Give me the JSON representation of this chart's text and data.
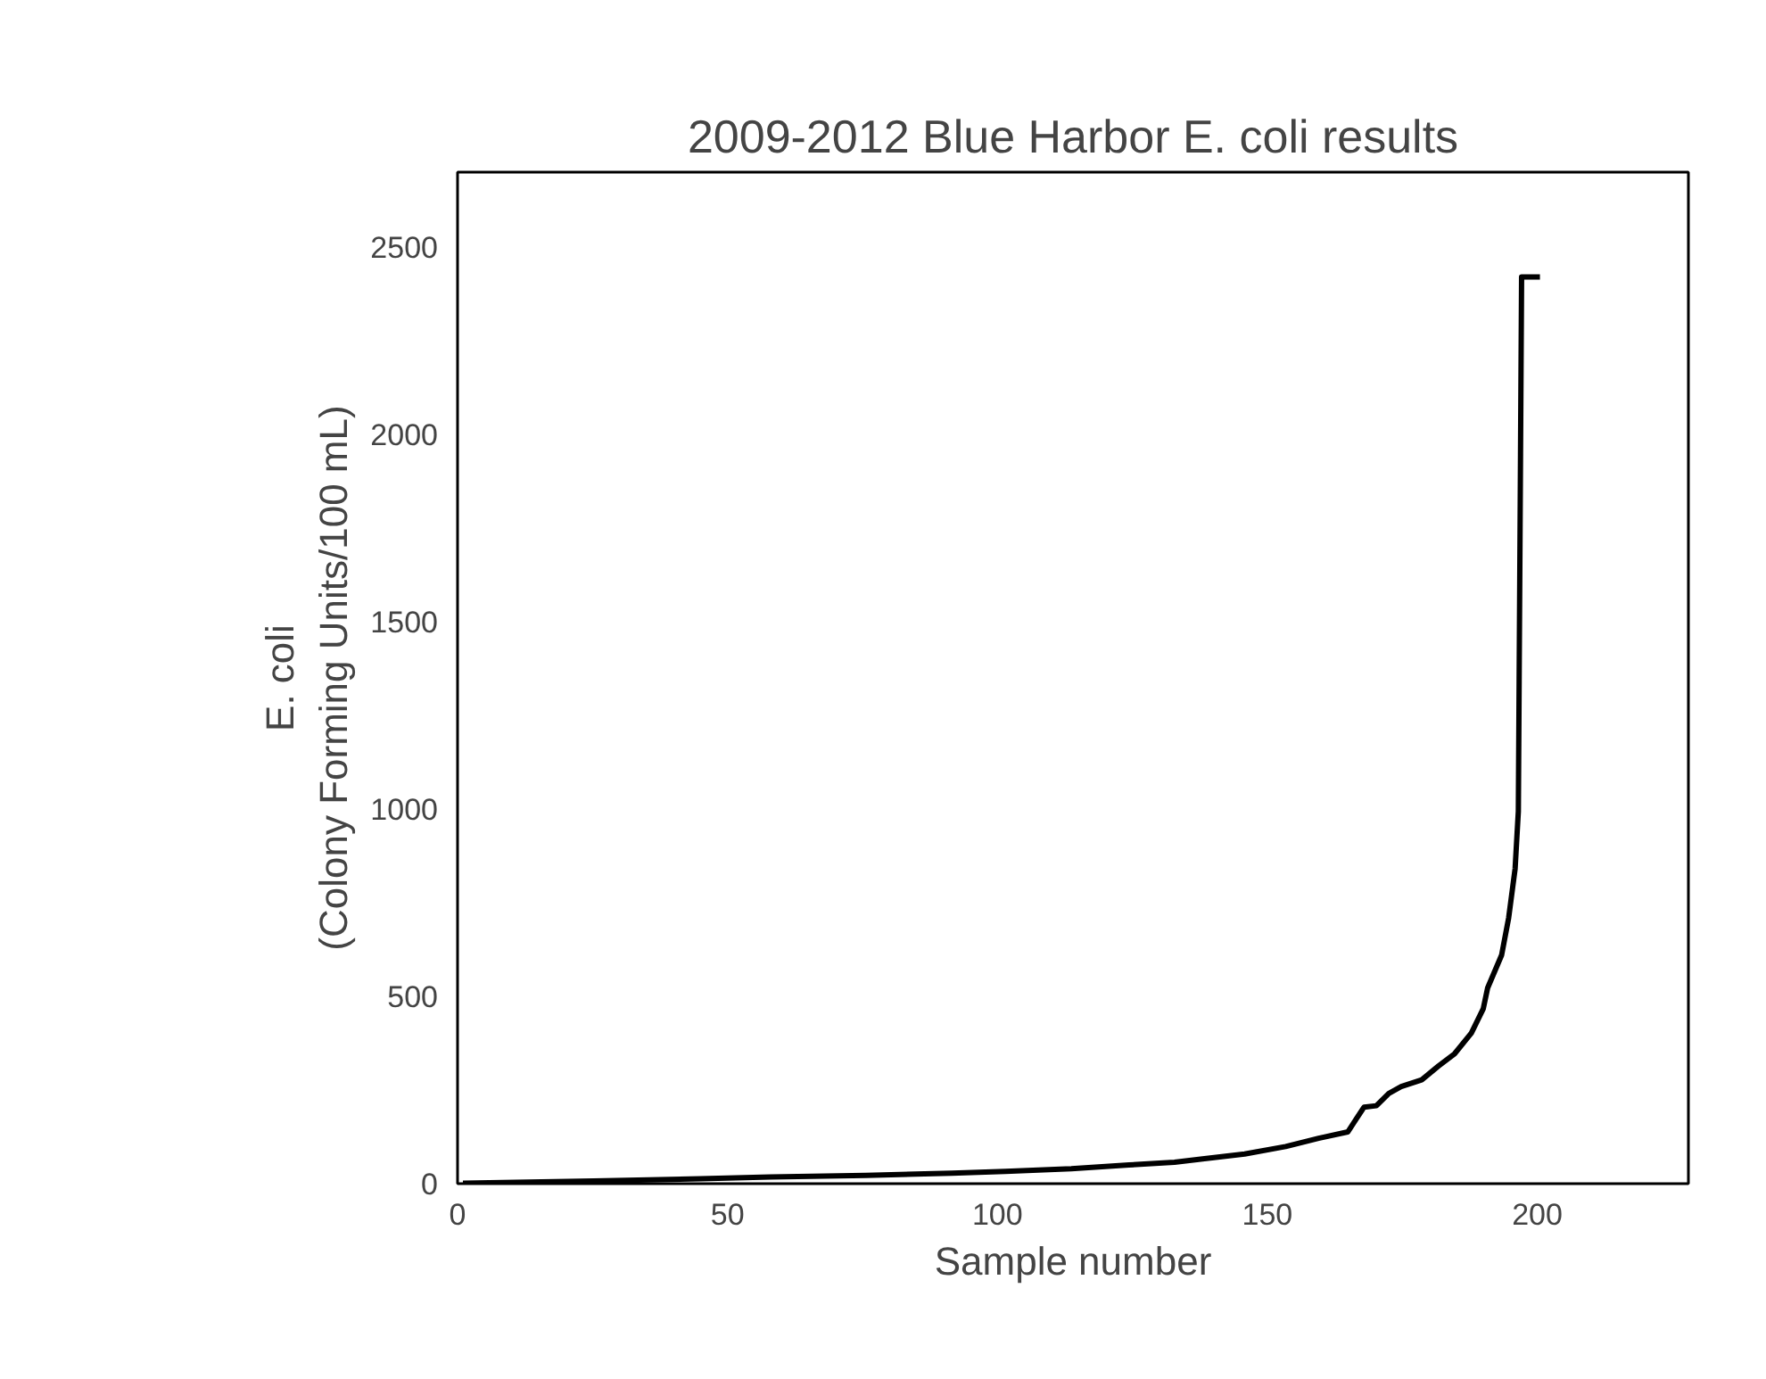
{
  "chart_data": {
    "type": "line",
    "title": "2009-2012 Blue Harbor E. coli results",
    "xlabel": "Sample number",
    "ylabel": "E. coli\n(Colony Forming Units/100 mL)",
    "x": [
      1,
      25.2,
      45,
      58,
      75.6,
      91.6,
      101.5,
      113.7,
      124.4,
      132.8,
      138,
      145.8,
      153.4,
      159.5,
      164.9,
      166.4,
      167.9,
      170.2,
      172.5,
      174.8,
      178.6,
      181.7,
      184.7,
      187.8,
      190,
      190.8,
      193.4,
      194.7,
      195.9,
      196.5,
      197.1,
      200.5
    ],
    "series": [
      {
        "color": "#000000",
        "values": [
          1,
          7,
          13,
          18,
          22,
          28,
          33,
          40,
          50,
          57,
          66,
          79,
          99,
          121,
          138,
          171,
          204,
          208,
          241,
          259,
          277,
          314,
          347,
          402,
          467,
          522,
          610,
          709,
          841,
          994,
          2420,
          2420
        ]
      }
    ],
    "xlim": [
      0,
      228
    ],
    "xticks": [
      0,
      50,
      100,
      150,
      200
    ],
    "ylim": [
      0,
      2700
    ],
    "yticks": [
      0,
      500,
      1000,
      1500,
      2000,
      2500
    ],
    "line_style": "solid",
    "marker": "none"
  }
}
